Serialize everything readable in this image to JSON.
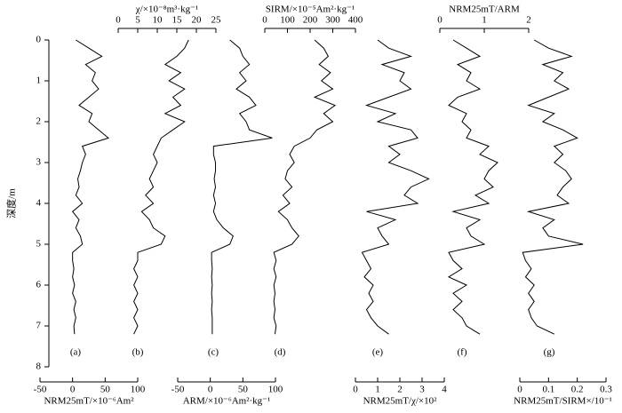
{
  "chart_data": {
    "type": "depth-profiles",
    "ylabel": "深度/m",
    "ylim": [
      0,
      8
    ],
    "yticks": [
      0,
      1,
      2,
      3,
      4,
      5,
      6,
      7,
      8
    ],
    "depth": [
      0,
      0.2,
      0.4,
      0.6,
      0.8,
      1.0,
      1.2,
      1.4,
      1.6,
      1.8,
      2.0,
      2.2,
      2.4,
      2.6,
      2.8,
      3.0,
      3.2,
      3.4,
      3.6,
      3.8,
      4.0,
      4.2,
      4.4,
      4.6,
      4.8,
      5.0,
      5.2,
      5.4,
      5.6,
      5.8,
      6.0,
      6.2,
      6.4,
      6.6,
      6.8,
      7.0,
      7.2
    ],
    "panels": [
      {
        "label": "(a)",
        "xlabel": "NRM25mT/×10⁻⁶Am²",
        "axis_side": "bottom",
        "xlim": [
          -50,
          100
        ],
        "xticks": [
          -50,
          0,
          50,
          100
        ],
        "values": [
          5,
          25,
          45,
          20,
          35,
          30,
          40,
          25,
          10,
          30,
          25,
          40,
          55,
          15,
          20,
          15,
          12,
          8,
          10,
          5,
          15,
          0,
          10,
          5,
          12,
          15,
          0,
          0,
          2,
          0,
          3,
          0,
          5,
          2,
          5,
          2,
          3
        ]
      },
      {
        "label": "(b)",
        "xlabel": "χ/×10⁻⁸m³·kg⁻¹",
        "axis_side": "top",
        "xlim": [
          0,
          25
        ],
        "xticks": [
          0,
          5,
          10,
          15,
          20,
          25
        ],
        "values": [
          18,
          17,
          15,
          12,
          16,
          13,
          17,
          14,
          16,
          12,
          17,
          14,
          11,
          10,
          9,
          10,
          9,
          8,
          9,
          7,
          9,
          6,
          8,
          9,
          12,
          11,
          5,
          5,
          4,
          5,
          4,
          5,
          4,
          5,
          4,
          5,
          4
        ]
      },
      {
        "label": "(c)",
        "xlabel": "ARM/×10⁻⁶Am²·kg⁻¹",
        "axis_side": "bottom",
        "xlim": [
          -50,
          100
        ],
        "xticks": [
          -50,
          0,
          50,
          100
        ],
        "values": [
          30,
          45,
          50,
          60,
          45,
          55,
          40,
          60,
          70,
          45,
          55,
          60,
          95,
          5,
          5,
          8,
          8,
          6,
          8,
          5,
          8,
          5,
          10,
          20,
          35,
          30,
          2,
          2,
          3,
          2,
          3,
          2,
          3,
          2,
          3,
          3,
          3
        ]
      },
      {
        "label": "(d)",
        "xlabel": "SIRM/×10⁻⁵Am²·kg⁻¹",
        "axis_side": "top",
        "xlim": [
          0,
          400
        ],
        "xticks": [
          0,
          100,
          200,
          300,
          400
        ],
        "values": [
          220,
          260,
          280,
          240,
          290,
          250,
          300,
          220,
          310,
          260,
          300,
          230,
          200,
          130,
          110,
          130,
          100,
          90,
          120,
          80,
          110,
          60,
          100,
          120,
          150,
          120,
          40,
          50,
          40,
          50,
          40,
          45,
          40,
          45,
          40,
          50,
          45
        ]
      },
      {
        "label": "(e)",
        "xlabel": "NRM25mT/χ/×10²",
        "axis_side": "bottom",
        "xlim": [
          0,
          4
        ],
        "xticks": [
          0,
          1,
          2,
          3,
          4
        ],
        "values": [
          1.0,
          1.5,
          2.5,
          1.2,
          2.2,
          2.0,
          2.5,
          1.5,
          0.5,
          1.8,
          1.0,
          2.5,
          2.8,
          1.5,
          2.0,
          1.5,
          2.5,
          3.3,
          2.5,
          2.2,
          2.8,
          0.5,
          1.8,
          1.0,
          1.2,
          1.5,
          0.3,
          0.5,
          0.7,
          0.4,
          0.8,
          0.6,
          0.8,
          0.5,
          0.7,
          1.0,
          1.5
        ]
      },
      {
        "label": "(f)",
        "xlabel": "NRM25mT/ARM",
        "axis_side": "top",
        "xlim": [
          0,
          2
        ],
        "xticks": [
          0,
          1,
          2
        ],
        "values": [
          0.3,
          0.6,
          0.9,
          0.4,
          0.7,
          0.6,
          0.9,
          0.4,
          0.2,
          0.6,
          0.5,
          0.7,
          0.6,
          1.1,
          0.9,
          1.3,
          1.1,
          1.0,
          1.2,
          0.8,
          1.1,
          0.3,
          0.9,
          0.6,
          0.7,
          1.0,
          0.2,
          0.3,
          0.5,
          0.2,
          0.6,
          0.3,
          0.5,
          0.3,
          0.5,
          0.6,
          0.9
        ]
      },
      {
        "label": "(g)",
        "xlabel": "NRM25mT/SIRM×/10⁻¹",
        "axis_side": "bottom",
        "xlim": [
          0,
          0.3
        ],
        "xticks": [
          0,
          0.1,
          0.2,
          0.3
        ],
        "values": [
          0.05,
          0.1,
          0.18,
          0.08,
          0.15,
          0.12,
          0.17,
          0.1,
          0.03,
          0.12,
          0.08,
          0.15,
          0.2,
          0.12,
          0.15,
          0.12,
          0.16,
          0.18,
          0.15,
          0.13,
          0.17,
          0.03,
          0.12,
          0.08,
          0.1,
          0.22,
          0.01,
          0.02,
          0.04,
          0.02,
          0.05,
          0.03,
          0.05,
          0.03,
          0.04,
          0.06,
          0.12
        ]
      }
    ]
  }
}
